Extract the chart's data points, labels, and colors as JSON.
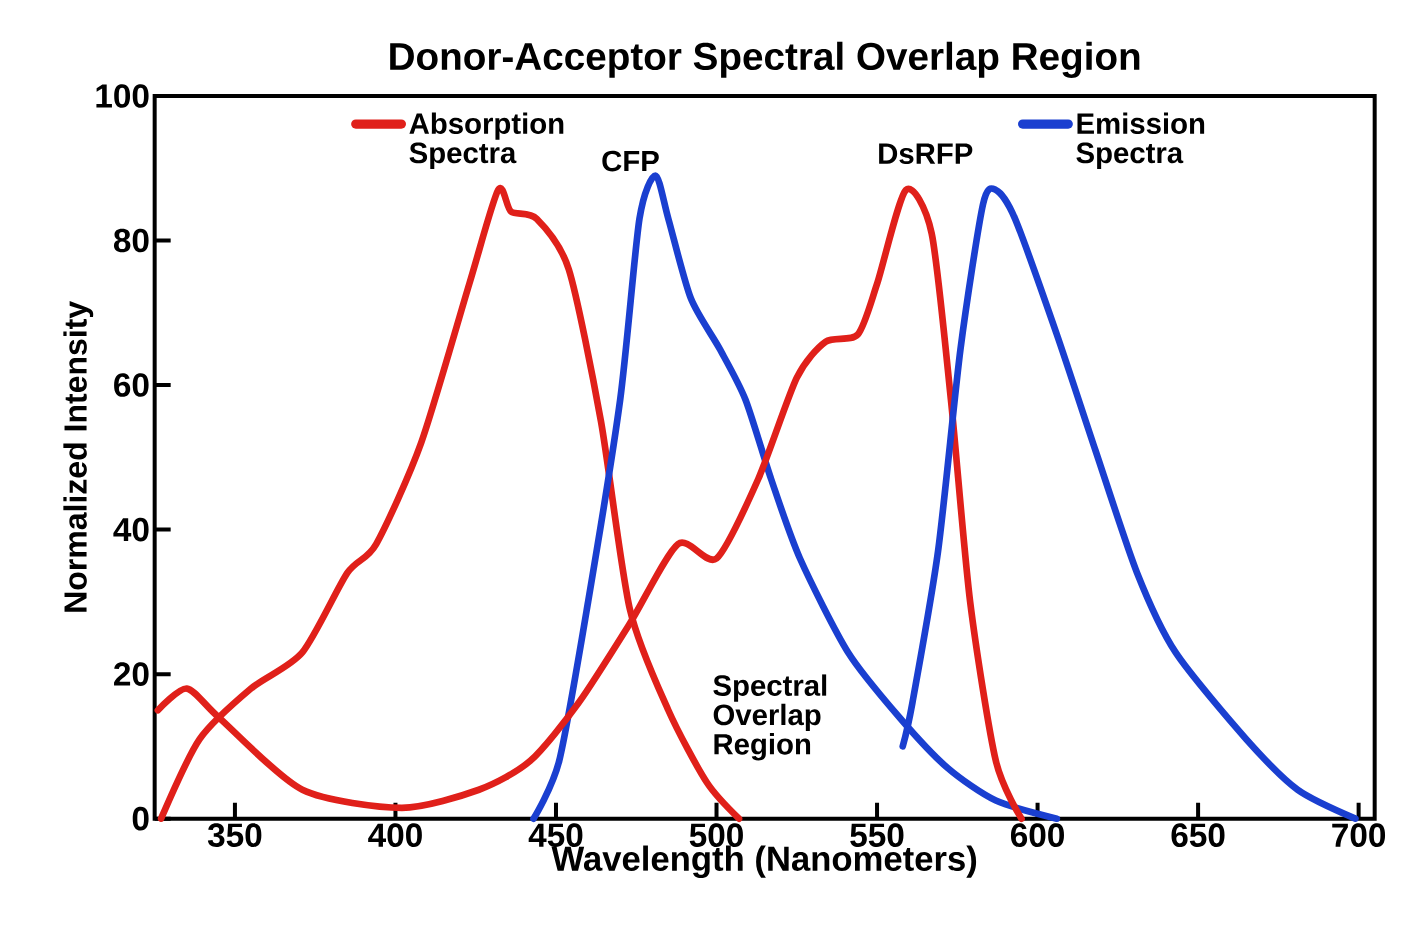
{
  "chart_data": {
    "type": "line",
    "title": "Donor-Acceptor Spectral Overlap Region",
    "xlabel": "Wavelength (Nanometers)",
    "ylabel": "Normalized Intensity",
    "xlim": [
      325,
      705
    ],
    "ylim": [
      0,
      100
    ],
    "xticks": [
      350,
      400,
      450,
      500,
      550,
      600,
      650,
      700
    ],
    "yticks": [
      0,
      20,
      40,
      60,
      80,
      100
    ],
    "legend": "top",
    "line_style": "solid",
    "series": [
      {
        "name": "Absorption Spectra",
        "color": "#e0201a",
        "x": [
          327,
          339,
          355,
          371,
          385,
          394,
          408,
          423,
          432,
          436,
          444,
          454,
          464,
          473,
          485,
          497,
          507
        ],
        "values": [
          0,
          11,
          18,
          23,
          34,
          38,
          52,
          74,
          87,
          84,
          83,
          76,
          55,
          29,
          15,
          5,
          0
        ]
      },
      {
        "name": "Emission Spectra",
        "color": "#1a3fd0",
        "x": [
          443,
          451,
          460,
          470,
          476,
          481,
          485,
          492,
          501,
          509,
          517,
          526,
          541,
          557,
          572,
          587,
          606
        ],
        "values": [
          0,
          8,
          30,
          58,
          83,
          89,
          83,
          72,
          65,
          58,
          47,
          36,
          23,
          14,
          7,
          2.5,
          0
        ]
      },
      {
        "color": "#e0201a",
        "x": [
          326,
          335,
          345,
          371,
          402,
          426,
          442,
          457,
          473,
          488,
          500,
          513,
          525,
          534,
          544,
          550,
          559,
          567,
          573,
          579,
          587,
          595
        ],
        "values": [
          15,
          18,
          14,
          4,
          1.5,
          4,
          8,
          16,
          27,
          38,
          36,
          47,
          61,
          66,
          67,
          74,
          87,
          81,
          58,
          30,
          8,
          0
        ]
      },
      {
        "color": "#1a3fd0",
        "x": [
          558,
          561,
          569,
          576,
          583,
          587,
          593,
          606,
          618,
          631,
          643,
          665,
          681,
          699
        ],
        "values": [
          10,
          16,
          37,
          65,
          85,
          87,
          83,
          67,
          51,
          34,
          23,
          11,
          4,
          0
        ]
      }
    ],
    "annotations": [
      "CFP",
      "DsRFP",
      "Spectral Overlap Region"
    ]
  }
}
